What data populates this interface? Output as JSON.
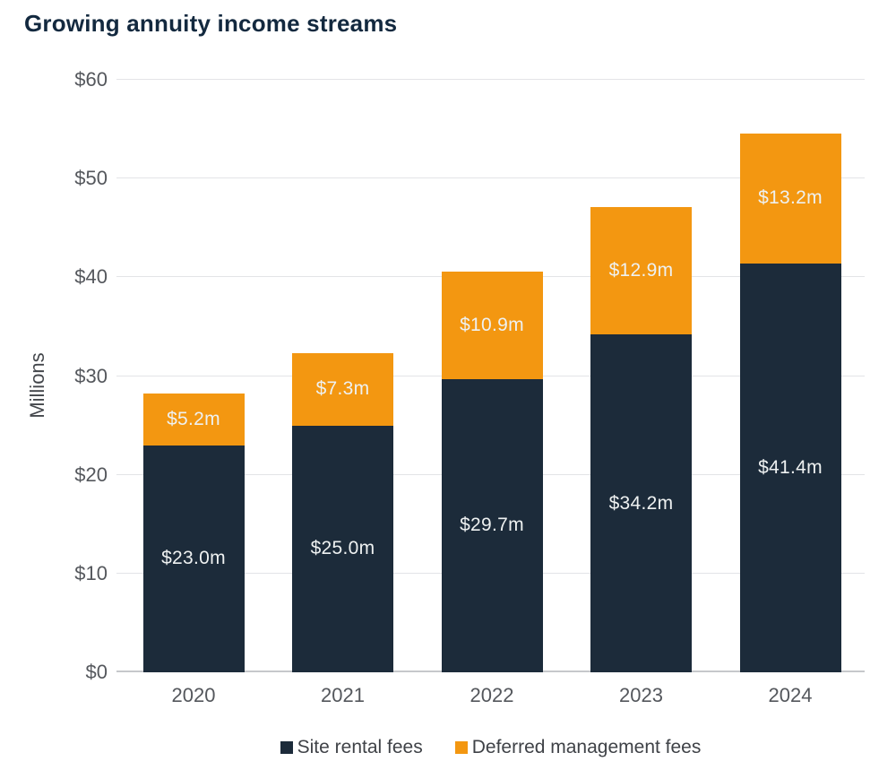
{
  "title": "Growing annuity income streams",
  "chart_data": {
    "type": "bar",
    "stacked": true,
    "title": "Growing annuity income streams",
    "categories": [
      "2020",
      "2021",
      "2022",
      "2023",
      "2024"
    ],
    "series": [
      {
        "name": "Site rental fees",
        "color": "#1C2B3A",
        "values": [
          23.0,
          25.0,
          29.7,
          34.2,
          41.4
        ],
        "labels": [
          "$23.0m",
          "$25.0m",
          "$29.7m",
          "$34.2m",
          "$41.4m"
        ]
      },
      {
        "name": "Deferred management fees",
        "color": "#F39711",
        "values": [
          5.2,
          7.3,
          10.9,
          12.9,
          13.2
        ],
        "labels": [
          "$5.2m",
          "$7.3m",
          "$10.9m",
          "$12.9m",
          "$13.2m"
        ]
      }
    ],
    "totals": [
      28.2,
      32.3,
      40.6,
      47.1,
      54.6
    ],
    "xlabel": "",
    "ylabel": "Millions",
    "ylim": [
      0,
      60
    ],
    "yticks": [
      0,
      10,
      20,
      30,
      40,
      50,
      60
    ],
    "ytick_labels": [
      "$0",
      "$10",
      "$20",
      "$30",
      "$40",
      "$50",
      "$60"
    ],
    "grid": true,
    "legend_position": "bottom",
    "value_label_color": "#EEF1F1"
  }
}
